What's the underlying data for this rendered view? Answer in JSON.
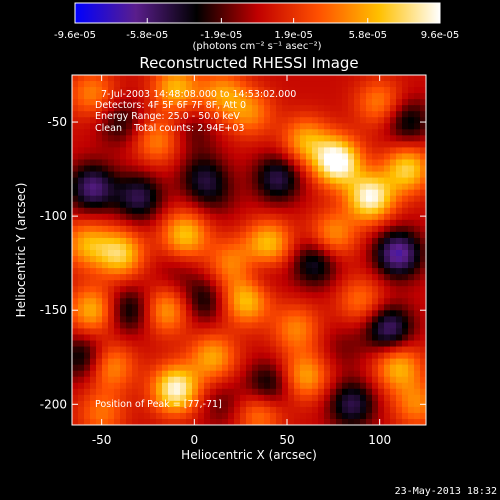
{
  "chart_data": {
    "type": "heatmap",
    "title": "Reconstructed RHESSI Image",
    "xlabel": "Heliocentric X (arcsec)",
    "ylabel": "Heliocentric Y (arcsec)",
    "xlim": [
      -66,
      125
    ],
    "ylim": [
      -211,
      -25
    ],
    "x_ticks": [
      "-50",
      "0",
      "50",
      "100"
    ],
    "x_tick_values": [
      -50,
      0,
      50,
      100
    ],
    "y_ticks": [
      "-50",
      "-100",
      "-150",
      "-200"
    ],
    "y_tick_values": [
      -50,
      -100,
      -150,
      -200
    ],
    "colorbar": {
      "ticks": [
        "-9.6e-05",
        "-5.8e-05",
        "-1.9e-05",
        "1.9e-05",
        "5.8e-05",
        "9.6e-05"
      ],
      "tick_values": [
        -9.6e-05,
        -5.8e-05,
        -1.9e-05,
        1.9e-05,
        5.8e-05,
        9.6e-05
      ],
      "range": [
        -9.6e-05,
        9.6e-05
      ],
      "units_label": "(photons cm⁻² s⁻¹ asec⁻²)",
      "colormap": "rhessi-color-table-5-blue-purple-red-yellow-white",
      "colors": [
        "#0000ff",
        "#5a1e8c",
        "#000000",
        "#c00000",
        "#ff5000",
        "#ffc000",
        "#ffffff"
      ]
    },
    "annotations": [
      "7-Jul-2003 14:48:08.000 to 14:53:02.000",
      "Detectors: 4F 5F 6F 7F 8F, Att 0",
      "Energy Range: 25.0 - 50.0 keV",
      "Clean    Total counts: 2.94E+03"
    ],
    "peak_label": "Position of Peak = [77,-71]",
    "peak": [
      77,
      -71
    ],
    "blobs": [
      {
        "x": 77,
        "y": -71,
        "value": 9.6e-05
      },
      {
        "x": 95,
        "y": -90,
        "value": 8.5e-05
      },
      {
        "x": 115,
        "y": -75,
        "value": 6.5e-05
      },
      {
        "x": 60,
        "y": -60,
        "value": 5e-05
      },
      {
        "x": -10,
        "y": -32,
        "value": 5.5e-05
      },
      {
        "x": 15,
        "y": -35,
        "value": 4.5e-05
      },
      {
        "x": 30,
        "y": -45,
        "value": 4e-05
      },
      {
        "x": -20,
        "y": -60,
        "value": 4e-05
      },
      {
        "x": -55,
        "y": -35,
        "value": 4e-05
      },
      {
        "x": 100,
        "y": -40,
        "value": 4e-05
      },
      {
        "x": -40,
        "y": -120,
        "value": 6.5e-05
      },
      {
        "x": -58,
        "y": -115,
        "value": 5e-05
      },
      {
        "x": -5,
        "y": -110,
        "value": 6e-05
      },
      {
        "x": 40,
        "y": -115,
        "value": 6e-05
      },
      {
        "x": 75,
        "y": -110,
        "value": 4.5e-05
      },
      {
        "x": 20,
        "y": -125,
        "value": 4e-05
      },
      {
        "x": -15,
        "y": -150,
        "value": 5e-05
      },
      {
        "x": 28,
        "y": -145,
        "value": 6e-05
      },
      {
        "x": -55,
        "y": -150,
        "value": 5.5e-05
      },
      {
        "x": 55,
        "y": -160,
        "value": 4e-05
      },
      {
        "x": 90,
        "y": -145,
        "value": 3.5e-05
      },
      {
        "x": -45,
        "y": -180,
        "value": 4.5e-05
      },
      {
        "x": -10,
        "y": -192,
        "value": 8.5e-05
      },
      {
        "x": 10,
        "y": -175,
        "value": 5e-05
      },
      {
        "x": 60,
        "y": -185,
        "value": 5e-05
      },
      {
        "x": 110,
        "y": -180,
        "value": 5.5e-05
      },
      {
        "x": 120,
        "y": -200,
        "value": 4e-05
      },
      {
        "x": 35,
        "y": -205,
        "value": 4e-05
      },
      {
        "x": -50,
        "y": -205,
        "value": 3.5e-05
      },
      {
        "x": -30,
        "y": -90,
        "value": -5e-05
      },
      {
        "x": -55,
        "y": -85,
        "value": -6e-05
      },
      {
        "x": 5,
        "y": -80,
        "value": -4e-05
      },
      {
        "x": 45,
        "y": -80,
        "value": -5e-05
      },
      {
        "x": 65,
        "y": -125,
        "value": -4.5e-05
      },
      {
        "x": 110,
        "y": -120,
        "value": -7e-05
      },
      {
        "x": 105,
        "y": -160,
        "value": -6e-05
      },
      {
        "x": -35,
        "y": -150,
        "value": -4e-05
      },
      {
        "x": 5,
        "y": -145,
        "value": -3.5e-05
      },
      {
        "x": 40,
        "y": -190,
        "value": -4e-05
      },
      {
        "x": -60,
        "y": -175,
        "value": -4e-05
      },
      {
        "x": 85,
        "y": -200,
        "value": -5e-05
      },
      {
        "x": 115,
        "y": -50,
        "value": -4e-05
      },
      {
        "x": -40,
        "y": -50,
        "value": -3e-05
      },
      {
        "x": 0,
        "y": -55,
        "value": -2e-05
      },
      {
        "x": 12,
        "y": -90,
        "value": -1.5e-05
      },
      {
        "x": -10,
        "y": -130,
        "value": -1.5e-05
      },
      {
        "x": 35,
        "y": -130,
        "value": -2e-05
      },
      {
        "x": 15,
        "y": -200,
        "value": -2e-05
      },
      {
        "x": 80,
        "y": -170,
        "value": -1.5e-05
      }
    ]
  },
  "footer": {
    "timestamp": "23-May-2013 18:32"
  }
}
